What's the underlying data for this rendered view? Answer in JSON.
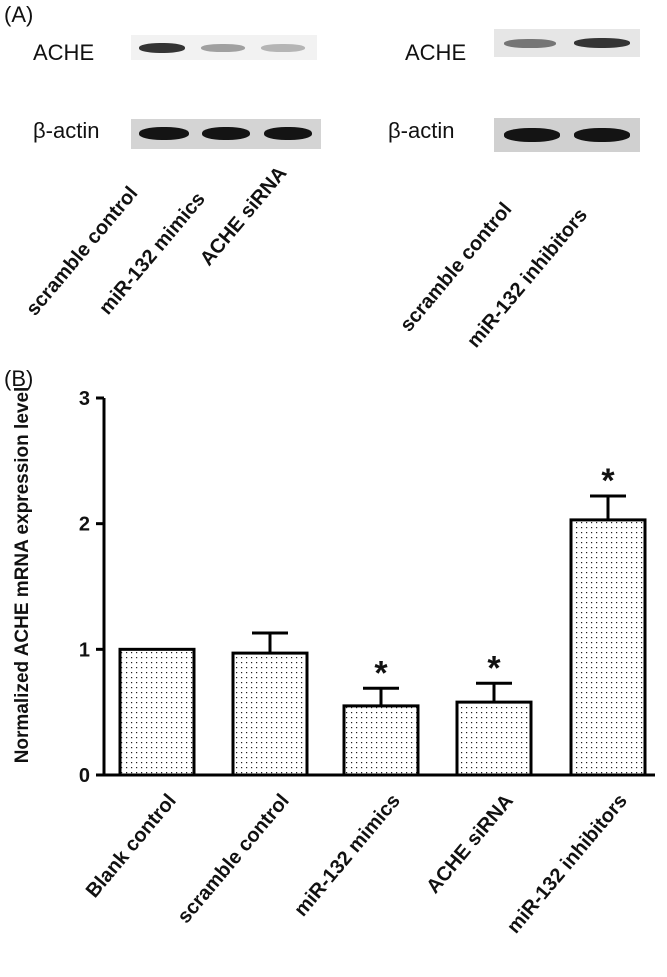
{
  "panel_a": {
    "label": "(A)",
    "left_blot": {
      "ache_label": "ACHE",
      "actin_label": "β-actin",
      "lanes": [
        "scramble control",
        "miR-132 mimics",
        "ACHE siRNA"
      ],
      "ache_intensity": [
        0.85,
        0.35,
        0.25
      ],
      "actin_intensity": [
        1.0,
        1.0,
        1.0
      ]
    },
    "right_blot": {
      "ache_label": "ACHE",
      "actin_label": "β-actin",
      "lanes": [
        "scramble control",
        "miR-132  inhibitors"
      ],
      "ache_intensity": [
        0.55,
        0.85
      ],
      "actin_intensity": [
        1.0,
        1.0
      ]
    }
  },
  "panel_b": {
    "label": "(B)"
  },
  "chart_data": {
    "type": "bar",
    "title": "",
    "xlabel": "",
    "ylabel": "Normalized ACHE mRNA expression level",
    "ylim": [
      0,
      3
    ],
    "yticks": [
      "0",
      "1",
      "2",
      "3"
    ],
    "categories": [
      "Blank control",
      "scramble control",
      "miR-132 mimics",
      "ACHE siRNA",
      "miR-132  inhibitors"
    ],
    "values": [
      1.0,
      0.97,
      0.55,
      0.58,
      2.03
    ],
    "errors": [
      0,
      0.16,
      0.14,
      0.15,
      0.19
    ],
    "significance": [
      "",
      "",
      "*",
      "*",
      "*"
    ],
    "bar_pattern": "dotted",
    "grid": false
  }
}
